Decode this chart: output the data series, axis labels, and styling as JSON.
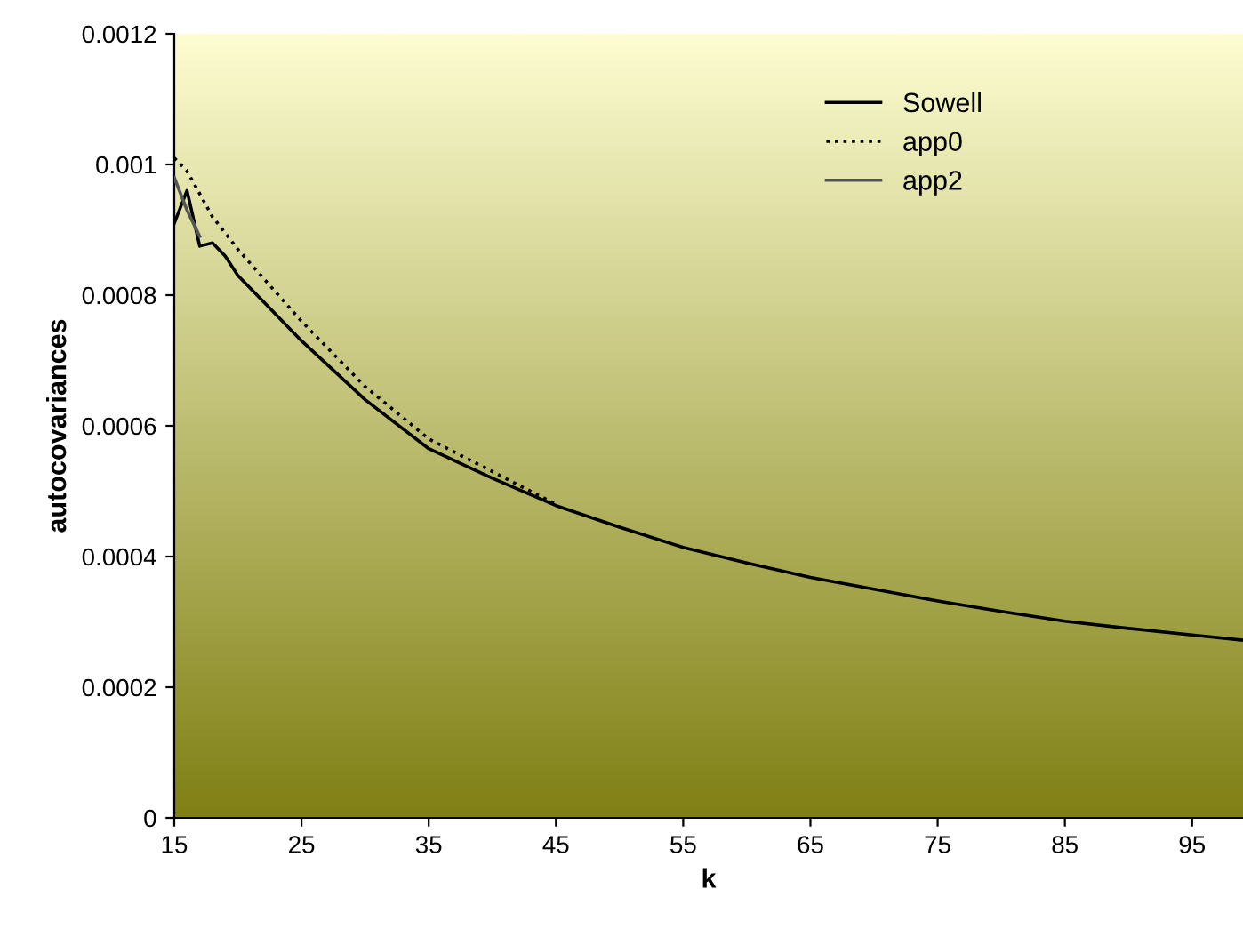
{
  "chart_data": {
    "type": "line",
    "xlabel": "k",
    "ylabel": "autocovariances",
    "xlim": [
      15,
      99
    ],
    "xticks": [
      15,
      25,
      35,
      45,
      55,
      65,
      75,
      85,
      95
    ],
    "ylim": [
      0,
      0.0012
    ],
    "yticks": [
      0,
      0.0002,
      0.0004,
      0.0006,
      0.0008,
      0.001,
      0.0012
    ],
    "grid": false,
    "legend": "top right",
    "marker": "none",
    "series": [
      {
        "name": "Sowell",
        "color": "#000000",
        "line_style": "solid",
        "x": [
          15,
          16,
          17,
          18,
          19,
          20,
          22,
          25,
          30,
          35,
          40,
          45,
          50,
          55,
          60,
          65,
          70,
          75,
          80,
          85,
          90,
          95,
          99
        ],
        "values": [
          0.00091,
          0.00096,
          0.000875,
          0.00088,
          0.00086,
          0.00083,
          0.00079,
          0.00073,
          0.00064,
          0.000565,
          0.00052,
          0.000478,
          0.000445,
          0.000414,
          0.00039,
          0.000368,
          0.00035,
          0.000332,
          0.000316,
          0.000301,
          0.00029,
          0.00028,
          0.000272
        ]
      },
      {
        "name": "app0",
        "color": "#000000",
        "line_style": "dotted",
        "x": [
          15,
          16,
          18,
          20,
          25,
          30,
          35,
          40,
          45
        ],
        "values": [
          0.00101,
          0.00099,
          0.00092,
          0.00087,
          0.00076,
          0.00066,
          0.00058,
          0.00053,
          0.00048
        ]
      },
      {
        "name": "app2",
        "color": "#555555",
        "line_style": "solid",
        "x": [
          15,
          16,
          17
        ],
        "values": [
          0.00098,
          0.00093,
          0.00089
        ]
      }
    ]
  }
}
